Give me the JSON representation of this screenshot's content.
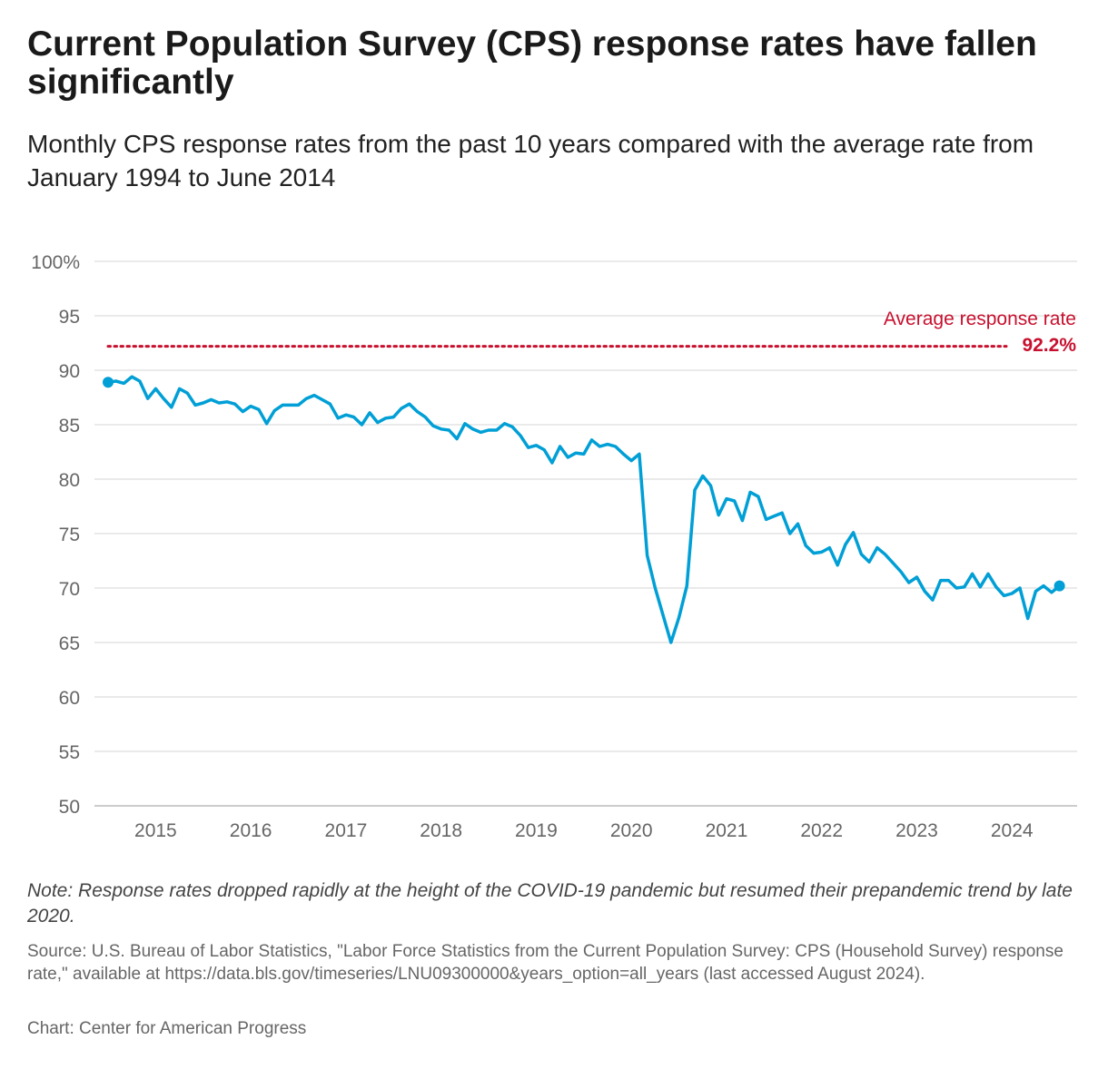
{
  "title": "Current Population Survey (CPS) response rates have fallen significantly",
  "subtitle": "Monthly CPS response rates from the past 10 years compared with the average rate from January 1994 to June 2014",
  "note": "Note: Response rates dropped rapidly at the height of the COVID-19 pandemic but resumed their prepandemic trend by late 2020.",
  "source": "Source: U.S. Bureau of Labor Statistics, \"Labor Force Statistics from the Current Population Survey: CPS (Household Survey) response rate,\" available at https://data.bls.gov/timeseries/LNU09300000&years_option=all_years (last accessed August 2024).",
  "credit": "Chart: Center for American Progress",
  "colors": {
    "line": "#009fd6",
    "reference": "#c8102e",
    "grid": "#e3e3e3"
  },
  "chart_data": {
    "type": "line",
    "start": "July 2014",
    "end": "July 2024",
    "frequency": "monthly",
    "ylim": [
      50,
      100
    ],
    "yticks": [
      50,
      55,
      60,
      65,
      70,
      75,
      80,
      85,
      90,
      95,
      100
    ],
    "ytick_labels": [
      "50",
      "55",
      "60",
      "65",
      "70",
      "75",
      "80",
      "85",
      "90",
      "95",
      "100%"
    ],
    "xtick_labels": [
      "2015",
      "2016",
      "2017",
      "2018",
      "2019",
      "2020",
      "2021",
      "2022",
      "2023",
      "2024"
    ],
    "reference": {
      "label": "Average response rate",
      "value": 92.2,
      "value_label": "92.2%"
    },
    "series": [
      {
        "name": "Monthly CPS response rate",
        "values": [
          88.9,
          89.0,
          88.8,
          89.4,
          89.0,
          87.4,
          88.3,
          87.4,
          86.6,
          88.3,
          87.9,
          86.8,
          87.0,
          87.3,
          87.0,
          87.1,
          86.9,
          86.2,
          86.7,
          86.4,
          85.1,
          86.3,
          86.8,
          86.8,
          86.8,
          87.4,
          87.7,
          87.3,
          86.9,
          85.6,
          85.9,
          85.7,
          85.0,
          86.1,
          85.2,
          85.6,
          85.7,
          86.5,
          86.9,
          86.2,
          85.7,
          84.9,
          84.6,
          84.5,
          83.7,
          85.1,
          84.6,
          84.3,
          84.5,
          84.5,
          85.1,
          84.8,
          84.0,
          82.9,
          83.1,
          82.7,
          81.5,
          83.0,
          82.0,
          82.4,
          82.3,
          83.6,
          83.0,
          83.2,
          83.0,
          82.3,
          81.7,
          82.3,
          73.0,
          70.0,
          67.5,
          65.0,
          67.3,
          70.2,
          79.0,
          80.3,
          79.4,
          76.7,
          78.2,
          78.0,
          76.2,
          78.8,
          78.4,
          76.3,
          76.6,
          76.9,
          75.0,
          75.9,
          73.9,
          73.2,
          73.3,
          73.7,
          72.1,
          74.0,
          75.1,
          73.1,
          72.4,
          73.7,
          73.1,
          72.3,
          71.5,
          70.5,
          71.0,
          69.7,
          68.9,
          70.7,
          70.7,
          70.0,
          70.1,
          71.3,
          70.1,
          71.3,
          70.1,
          69.3,
          69.5,
          70.0,
          67.2,
          69.7,
          70.2,
          69.6,
          70.2
        ]
      }
    ]
  }
}
